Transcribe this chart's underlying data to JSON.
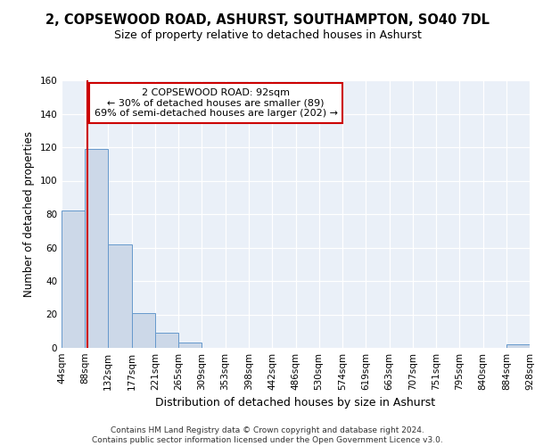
{
  "title1": "2, COPSEWOOD ROAD, ASHURST, SOUTHAMPTON, SO40 7DL",
  "title2": "Size of property relative to detached houses in Ashurst",
  "xlabel": "Distribution of detached houses by size in Ashurst",
  "ylabel": "Number of detached properties",
  "bin_edges": [
    44,
    88,
    132,
    177,
    221,
    265,
    309,
    353,
    398,
    442,
    486,
    530,
    574,
    619,
    663,
    707,
    751,
    795,
    840,
    884,
    928
  ],
  "bin_labels": [
    "44sqm",
    "88sqm",
    "132sqm",
    "177sqm",
    "221sqm",
    "265sqm",
    "309sqm",
    "353sqm",
    "398sqm",
    "442sqm",
    "486sqm",
    "530sqm",
    "574sqm",
    "619sqm",
    "663sqm",
    "707sqm",
    "751sqm",
    "795sqm",
    "840sqm",
    "884sqm",
    "928sqm"
  ],
  "counts": [
    82,
    119,
    62,
    21,
    9,
    3,
    0,
    0,
    0,
    0,
    0,
    0,
    0,
    0,
    0,
    0,
    0,
    0,
    0,
    2
  ],
  "bar_color": "#ccd8e8",
  "bar_edge_color": "#6699cc",
  "property_value": 92,
  "vline_color": "#cc0000",
  "annotation_text": "2 COPSEWOOD ROAD: 92sqm\n← 30% of detached houses are smaller (89)\n69% of semi-detached houses are larger (202) →",
  "annotation_box_color": "white",
  "annotation_box_edge_color": "#cc0000",
  "ylim": [
    0,
    160
  ],
  "yticks": [
    0,
    20,
    40,
    60,
    80,
    100,
    120,
    140,
    160
  ],
  "footer": "Contains HM Land Registry data © Crown copyright and database right 2024.\nContains public sector information licensed under the Open Government Licence v3.0.",
  "bg_color": "#eaf0f8",
  "grid_color": "white",
  "title1_fontsize": 10.5,
  "title2_fontsize": 9,
  "ylabel_fontsize": 8.5,
  "xlabel_fontsize": 9,
  "tick_fontsize": 7.5,
  "footer_fontsize": 6.5
}
